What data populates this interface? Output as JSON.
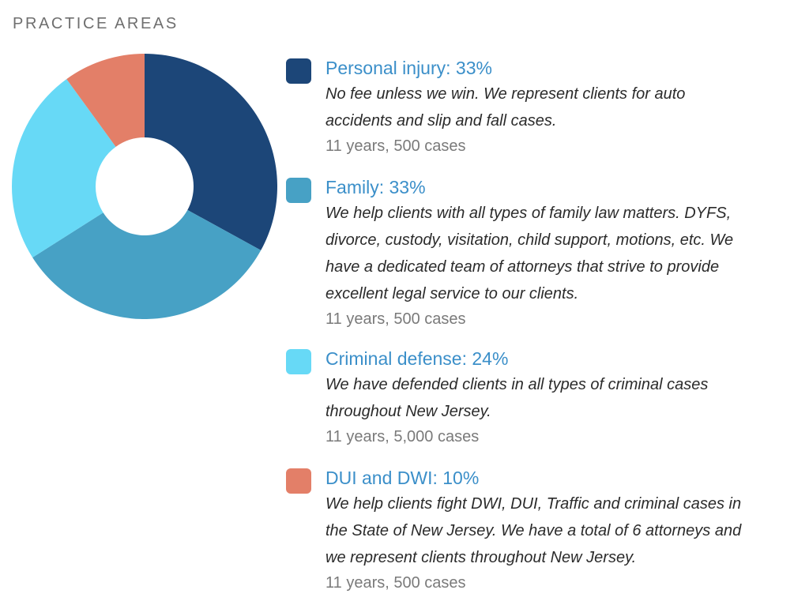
{
  "section": {
    "title": "PRACTICE AREAS"
  },
  "chart_data": {
    "type": "pie",
    "title": "",
    "categories": [
      "Personal injury",
      "Family",
      "Criminal defense",
      "DUI and DWI"
    ],
    "values": [
      33,
      33,
      24,
      10
    ],
    "unit": "%",
    "colors": [
      "#1c4678",
      "#47a1c5",
      "#67d9f6",
      "#e37f68"
    ],
    "donut": true
  },
  "legend": {
    "items": [
      {
        "title": "Personal injury: 33%",
        "desc": [
          "No fee unless we win. We represent clients for auto",
          "accidents and slip and fall cases."
        ],
        "meta": "11 years, 500 cases",
        "color": "#1c4678"
      },
      {
        "title": "Family: 33%",
        "desc": [
          "We help clients with all types of family law matters. DYFS,",
          "divorce, custody, visitation, child support, motions, etc. We",
          "have a dedicated team of attorneys that strive to provide",
          "excellent legal service to our clients."
        ],
        "meta": "11 years, 500 cases",
        "color": "#47a1c5"
      },
      {
        "title": "Criminal defense: 24%",
        "desc": [
          "We have defended clients in all types of criminal cases",
          "throughout New Jersey."
        ],
        "meta": "11 years, 5,000 cases",
        "color": "#67d9f6"
      },
      {
        "title": "DUI and DWI: 10%",
        "desc": [
          "We help clients fight DWI, DUI, Traffic and criminal cases in",
          "the State of New Jersey. We have a total of 6 attorneys and",
          "we represent clients throughout New Jersey."
        ],
        "meta": "11 years, 500 cases",
        "color": "#e37f68"
      }
    ]
  }
}
